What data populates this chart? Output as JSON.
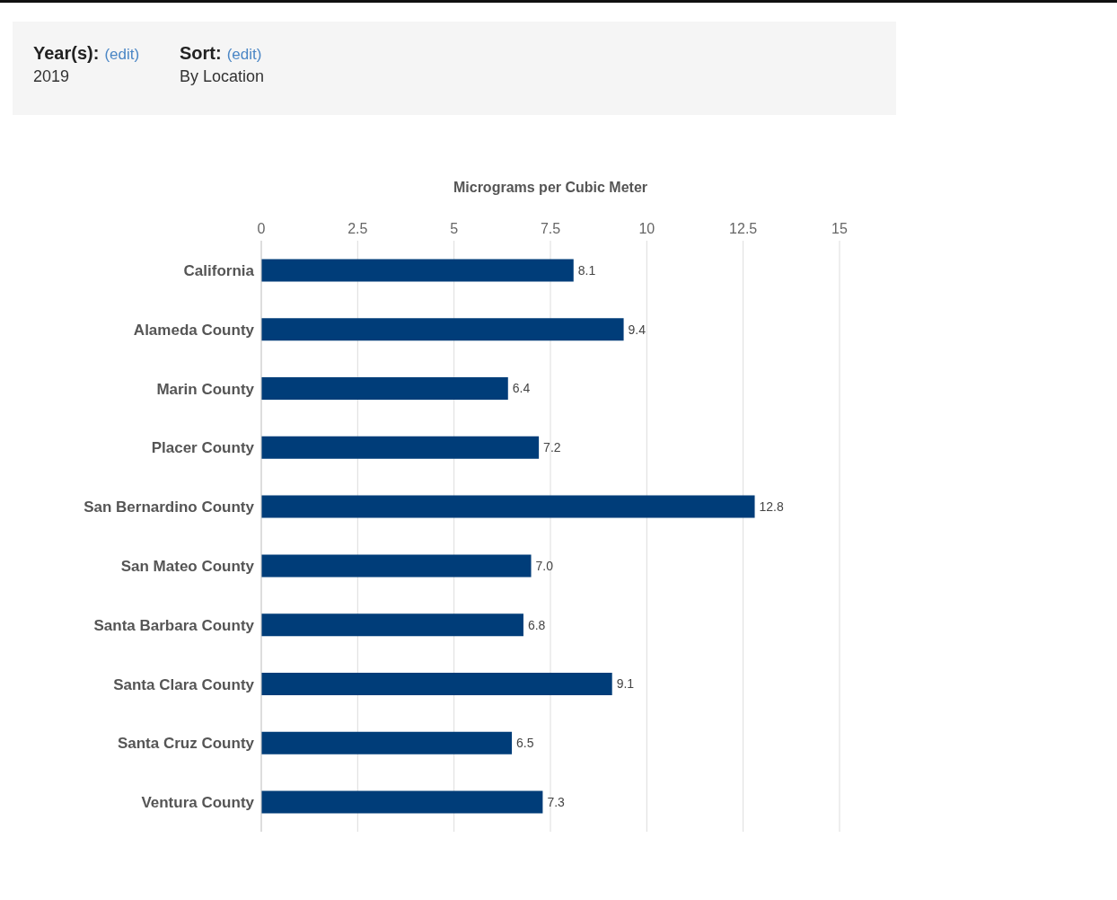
{
  "chart_data": {
    "type": "bar",
    "orientation": "horizontal",
    "xlabel": "Micrograms per Cubic Meter",
    "categories": [
      "California",
      "Alameda County",
      "Marin County",
      "Placer County",
      "San Bernardino County",
      "San Mateo County",
      "Santa Barbara County",
      "Santa Clara County",
      "Santa Cruz County",
      "Ventura County"
    ],
    "values": [
      8.1,
      9.4,
      6.4,
      7.2,
      12.8,
      7.0,
      6.8,
      9.1,
      6.5,
      7.3
    ],
    "value_labels": [
      "8.1",
      "9.4",
      "6.4",
      "7.2",
      "12.8",
      "7.0",
      "6.8",
      "9.1",
      "6.5",
      "7.3"
    ],
    "color": "#003d79",
    "xlim": [
      0,
      15
    ],
    "xticks": [
      0,
      2.5,
      5,
      7.5,
      10,
      12.5,
      15
    ],
    "grid": "x",
    "annotations": [
      "Year(s):",
      "(edit)",
      "2019",
      "Sort:",
      "(edit)",
      "By Location"
    ]
  }
}
